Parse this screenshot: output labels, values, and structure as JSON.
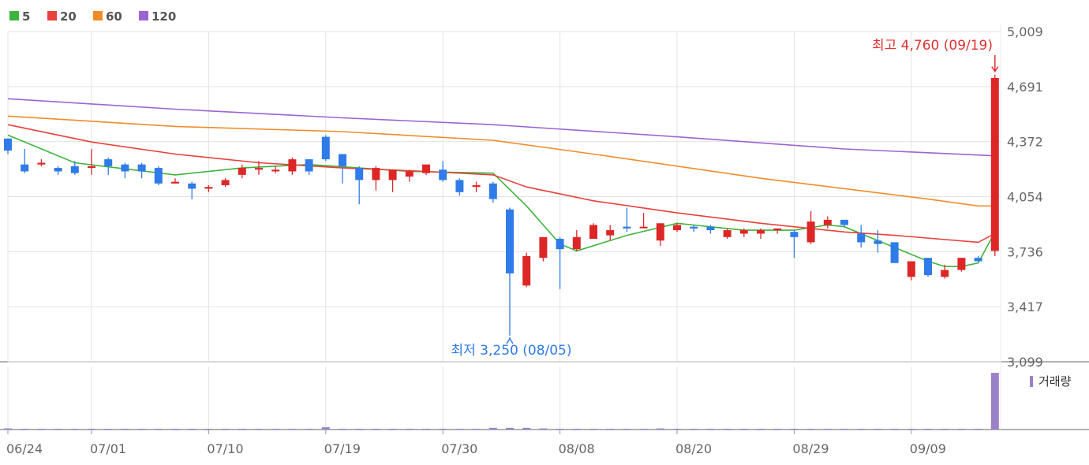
{
  "chart_data": {
    "type": "candlestick",
    "legend": [
      {
        "name": "5",
        "color": "#3cb43c"
      },
      {
        "name": "20",
        "color": "#e8403c"
      },
      {
        "name": "60",
        "color": "#f08c28"
      },
      {
        "name": "120",
        "color": "#9b64d2"
      }
    ],
    "y_ticks": [
      "5,009",
      "4,691",
      "4,372",
      "4,054",
      "3,736",
      "3,417",
      "3,099"
    ],
    "ylim": [
      3099,
      5009
    ],
    "x_ticks": [
      {
        "label": "06/24",
        "index": 0
      },
      {
        "label": "07/01",
        "index": 5
      },
      {
        "label": "07/10",
        "index": 12
      },
      {
        "label": "07/19",
        "index": 19
      },
      {
        "label": "07/30",
        "index": 26
      },
      {
        "label": "08/08",
        "index": 33
      },
      {
        "label": "08/20",
        "index": 40
      },
      {
        "label": "08/29",
        "index": 47
      },
      {
        "label": "09/09",
        "index": 54
      }
    ],
    "candles": [
      [
        4390,
        4390,
        4300,
        4320
      ],
      [
        4240,
        4330,
        4190,
        4200
      ],
      [
        4240,
        4270,
        4230,
        4250
      ],
      [
        4220,
        4230,
        4180,
        4200
      ],
      [
        4230,
        4260,
        4180,
        4190
      ],
      [
        4220,
        4330,
        4180,
        4230
      ],
      [
        4270,
        4280,
        4180,
        4230
      ],
      [
        4240,
        4250,
        4160,
        4200
      ],
      [
        4240,
        4250,
        4160,
        4200
      ],
      [
        4220,
        4230,
        4120,
        4130
      ],
      [
        4130,
        4160,
        4130,
        4140
      ],
      [
        4130,
        4140,
        4040,
        4100
      ],
      [
        4100,
        4120,
        4080,
        4110
      ],
      [
        4120,
        4160,
        4110,
        4150
      ],
      [
        4180,
        4240,
        4160,
        4220
      ],
      [
        4210,
        4260,
        4180,
        4220
      ],
      [
        4200,
        4230,
        4190,
        4210
      ],
      [
        4200,
        4280,
        4180,
        4270
      ],
      [
        4270,
        4270,
        4180,
        4200
      ],
      [
        4400,
        4410,
        4260,
        4270
      ],
      [
        4300,
        4300,
        4130,
        4230
      ],
      [
        4220,
        4230,
        4010,
        4150
      ],
      [
        4150,
        4230,
        4090,
        4220
      ],
      [
        4150,
        4210,
        4080,
        4210
      ],
      [
        4170,
        4210,
        4140,
        4200
      ],
      [
        4190,
        4240,
        4180,
        4240
      ],
      [
        4210,
        4260,
        4140,
        4150
      ],
      [
        4150,
        4160,
        4060,
        4080
      ],
      [
        4110,
        4140,
        4080,
        4120
      ],
      [
        4130,
        4140,
        4020,
        4040
      ],
      [
        3980,
        3990,
        3250,
        3610
      ],
      [
        3540,
        3730,
        3530,
        3710
      ],
      [
        3700,
        3820,
        3680,
        3820
      ],
      [
        3810,
        3820,
        3520,
        3750
      ],
      [
        3750,
        3860,
        3740,
        3820
      ],
      [
        3810,
        3900,
        3810,
        3890
      ],
      [
        3830,
        3890,
        3800,
        3860
      ],
      [
        3880,
        3990,
        3850,
        3870
      ],
      [
        3880,
        3960,
        3870,
        3880
      ],
      [
        3800,
        3900,
        3770,
        3900
      ],
      [
        3860,
        3900,
        3850,
        3890
      ],
      [
        3880,
        3890,
        3850,
        3870
      ],
      [
        3880,
        3890,
        3840,
        3860
      ],
      [
        3820,
        3870,
        3810,
        3860
      ],
      [
        3840,
        3870,
        3820,
        3860
      ],
      [
        3840,
        3870,
        3810,
        3860
      ],
      [
        3860,
        3870,
        3840,
        3870
      ],
      [
        3850,
        3860,
        3700,
        3820
      ],
      [
        3790,
        3970,
        3780,
        3910
      ],
      [
        3890,
        3940,
        3870,
        3920
      ],
      [
        3920,
        3920,
        3880,
        3890
      ],
      [
        3840,
        3890,
        3760,
        3790
      ],
      [
        3800,
        3860,
        3730,
        3780
      ],
      [
        3790,
        3790,
        3670,
        3670
      ],
      [
        3590,
        3680,
        3570,
        3680
      ],
      [
        3700,
        3700,
        3590,
        3600
      ],
      [
        3590,
        3660,
        3580,
        3630
      ],
      [
        3630,
        3700,
        3620,
        3700
      ],
      [
        3700,
        3710,
        3680,
        3680
      ],
      [
        3740,
        4760,
        3710,
        4740
      ]
    ],
    "ma": {
      "5": [
        [
          0,
          4410
        ],
        [
          4,
          4250
        ],
        [
          10,
          4180
        ],
        [
          14,
          4220
        ],
        [
          18,
          4240
        ],
        [
          24,
          4200
        ],
        [
          29,
          4190
        ],
        [
          31,
          4000
        ],
        [
          33,
          3780
        ],
        [
          34,
          3740
        ],
        [
          37,
          3830
        ],
        [
          40,
          3900
        ],
        [
          44,
          3860
        ],
        [
          47,
          3860
        ],
        [
          49,
          3890
        ],
        [
          50,
          3880
        ],
        [
          53,
          3760
        ],
        [
          55,
          3680
        ],
        [
          56,
          3650
        ],
        [
          57,
          3650
        ],
        [
          58,
          3670
        ],
        [
          59,
          3850
        ]
      ],
      "20": [
        [
          0,
          4470
        ],
        [
          5,
          4370
        ],
        [
          10,
          4300
        ],
        [
          15,
          4250
        ],
        [
          20,
          4220
        ],
        [
          25,
          4200
        ],
        [
          29,
          4180
        ],
        [
          31,
          4110
        ],
        [
          35,
          4030
        ],
        [
          40,
          3960
        ],
        [
          45,
          3900
        ],
        [
          50,
          3850
        ],
        [
          53,
          3830
        ],
        [
          58,
          3790
        ],
        [
          59,
          3840
        ]
      ],
      "60": [
        [
          0,
          4520
        ],
        [
          10,
          4460
        ],
        [
          20,
          4430
        ],
        [
          29,
          4380
        ],
        [
          35,
          4300
        ],
        [
          45,
          4160
        ],
        [
          55,
          4040
        ],
        [
          58,
          4000
        ],
        [
          59,
          4000
        ]
      ],
      "120": [
        [
          0,
          4620
        ],
        [
          10,
          4560
        ],
        [
          20,
          4510
        ],
        [
          29,
          4470
        ],
        [
          40,
          4400
        ],
        [
          50,
          4330
        ],
        [
          59,
          4290
        ]
      ]
    },
    "annotations": {
      "high": {
        "label": "최고 4,760 (09/19)",
        "index": 59,
        "value": 4760
      },
      "low": {
        "label": "최저 3,250 (08/05)",
        "index": 30,
        "value": 3250
      }
    },
    "volume": {
      "label": "거래량",
      "color": "#9b82c8",
      "values": [
        0.02,
        0.01,
        0.01,
        0.01,
        0.01,
        0.01,
        0.01,
        0.01,
        0.01,
        0.01,
        0.01,
        0.01,
        0.01,
        0.01,
        0.01,
        0.01,
        0.01,
        0.01,
        0.01,
        0.04,
        0.01,
        0.01,
        0.01,
        0.01,
        0.01,
        0.01,
        0.01,
        0.01,
        0.01,
        0.03,
        0.03,
        0.03,
        0.02,
        0.01,
        0.01,
        0.01,
        0.01,
        0.01,
        0.01,
        0.02,
        0.01,
        0.01,
        0.01,
        0.01,
        0.01,
        0.01,
        0.01,
        0.01,
        0.01,
        0.01,
        0.01,
        0.01,
        0.01,
        0.01,
        0.01,
        0.01,
        0.01,
        0.01,
        0.01,
        1.0
      ]
    },
    "colors": {
      "up": "#dd2727",
      "down": "#2f7be8",
      "grid": "#e3e3e3",
      "axis_text": "#666666"
    }
  }
}
